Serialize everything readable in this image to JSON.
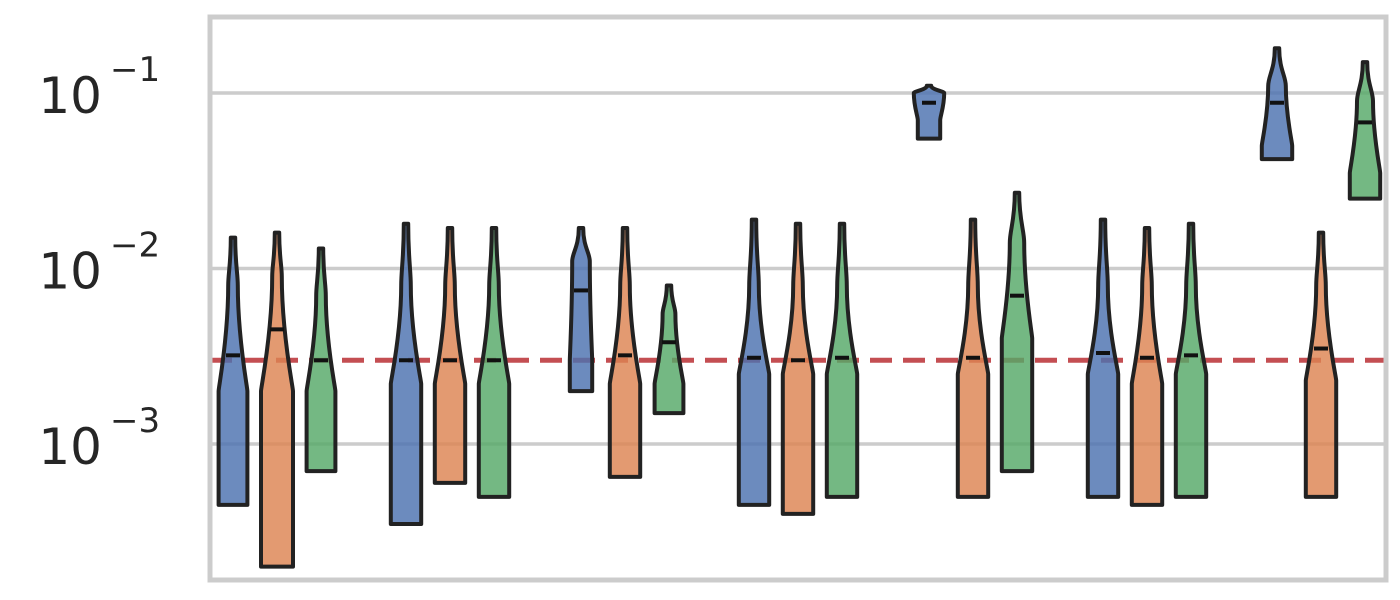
{
  "chart_data": {
    "type": "violin",
    "title": "",
    "xlabel": "",
    "ylabel": "",
    "y_scale": "log",
    "ylim": [
      0.00015,
      0.25
    ],
    "grid": "horizontal",
    "y_ticks": [
      {
        "value": 0.1,
        "base": "10",
        "exp": "−1"
      },
      {
        "value": 0.01,
        "base": "10",
        "exp": "−2"
      },
      {
        "value": 0.001,
        "base": "10",
        "exp": "−3"
      }
    ],
    "reference_line": {
      "value": 0.003,
      "style": "dashed",
      "color": "#c44e52"
    },
    "series_colors": [
      "#4c72b0",
      "#dd8452",
      "#55a868"
    ],
    "groups": [
      {
        "violins": [
          {
            "series": 0,
            "min": 0.00045,
            "max": 0.015,
            "median": 0.0032,
            "lower_knee": 0.002,
            "upper_knee": 0.008,
            "upper_width": 0.3,
            "lower_width": 0.9
          },
          {
            "series": 1,
            "min": 0.0002,
            "max": 0.016,
            "median": 0.0045,
            "lower_knee": 0.002,
            "upper_knee": 0.009,
            "upper_width": 0.3,
            "lower_width": 1.0
          },
          {
            "series": 2,
            "min": 0.0007,
            "max": 0.013,
            "median": 0.003,
            "lower_knee": 0.002,
            "upper_knee": 0.007,
            "upper_width": 0.3,
            "lower_width": 0.9
          }
        ]
      },
      {
        "violins": [
          {
            "series": 0,
            "min": 0.00035,
            "max": 0.018,
            "median": 0.003,
            "lower_knee": 0.0022,
            "upper_knee": 0.008,
            "upper_width": 0.3,
            "lower_width": 0.95
          },
          {
            "series": 1,
            "min": 0.0006,
            "max": 0.017,
            "median": 0.003,
            "lower_knee": 0.0022,
            "upper_knee": 0.008,
            "upper_width": 0.3,
            "lower_width": 0.95
          },
          {
            "series": 2,
            "min": 0.0005,
            "max": 0.017,
            "median": 0.003,
            "lower_knee": 0.0022,
            "upper_knee": 0.008,
            "upper_width": 0.3,
            "lower_width": 0.95
          }
        ]
      },
      {
        "violins": [
          {
            "series": 0,
            "min": 0.002,
            "max": 0.017,
            "median": 0.0075,
            "lower_knee": 0.003,
            "upper_knee": 0.011,
            "upper_width": 0.55,
            "lower_width": 0.7
          },
          {
            "series": 1,
            "min": 0.00065,
            "max": 0.017,
            "median": 0.0032,
            "lower_knee": 0.0022,
            "upper_knee": 0.008,
            "upper_width": 0.3,
            "lower_width": 0.95
          },
          {
            "series": 2,
            "min": 0.0015,
            "max": 0.008,
            "median": 0.0038,
            "lower_knee": 0.0022,
            "upper_knee": 0.0055,
            "upper_width": 0.4,
            "lower_width": 0.9
          }
        ]
      },
      {
        "violins": [
          {
            "series": 0,
            "min": 0.00045,
            "max": 0.019,
            "median": 0.0031,
            "lower_knee": 0.0025,
            "upper_knee": 0.008,
            "upper_width": 0.3,
            "lower_width": 0.95
          },
          {
            "series": 1,
            "min": 0.0004,
            "max": 0.018,
            "median": 0.003,
            "lower_knee": 0.0025,
            "upper_knee": 0.008,
            "upper_width": 0.3,
            "lower_width": 0.95
          },
          {
            "series": 2,
            "min": 0.0005,
            "max": 0.018,
            "median": 0.0031,
            "lower_knee": 0.0025,
            "upper_knee": 0.008,
            "upper_width": 0.3,
            "lower_width": 0.95
          }
        ]
      },
      {
        "violins": [
          {
            "series": 0,
            "min": 0.055,
            "max": 0.11,
            "median": 0.088,
            "lower_knee": 0.07,
            "upper_knee": 0.1,
            "upper_width": 0.95,
            "lower_width": 0.7
          },
          {
            "series": 1,
            "min": 0.0005,
            "max": 0.019,
            "median": 0.0031,
            "lower_knee": 0.0025,
            "upper_knee": 0.008,
            "upper_width": 0.3,
            "lower_width": 0.95
          },
          {
            "series": 2,
            "min": 0.0007,
            "max": 0.027,
            "median": 0.007,
            "lower_knee": 0.004,
            "upper_knee": 0.014,
            "upper_width": 0.45,
            "lower_width": 0.95
          }
        ]
      },
      {
        "violins": [
          {
            "series": 0,
            "min": 0.0005,
            "max": 0.019,
            "median": 0.0033,
            "lower_knee": 0.0025,
            "upper_knee": 0.008,
            "upper_width": 0.3,
            "lower_width": 0.95
          },
          {
            "series": 1,
            "min": 0.00045,
            "max": 0.017,
            "median": 0.0031,
            "lower_knee": 0.0022,
            "upper_knee": 0.008,
            "upper_width": 0.3,
            "lower_width": 0.95
          },
          {
            "series": 2,
            "min": 0.0005,
            "max": 0.018,
            "median": 0.0032,
            "lower_knee": 0.0025,
            "upper_knee": 0.008,
            "upper_width": 0.3,
            "lower_width": 0.95
          }
        ]
      },
      {
        "violins": [
          {
            "series": 0,
            "min": 0.042,
            "max": 0.18,
            "median": 0.088,
            "lower_knee": 0.05,
            "upper_knee": 0.11,
            "upper_width": 0.55,
            "lower_width": 0.95
          },
          {
            "series": 1,
            "min": 0.0005,
            "max": 0.016,
            "median": 0.0035,
            "lower_knee": 0.0023,
            "upper_knee": 0.008,
            "upper_width": 0.3,
            "lower_width": 0.95
          },
          {
            "series": 2,
            "min": 0.025,
            "max": 0.15,
            "median": 0.068,
            "lower_knee": 0.035,
            "upper_knee": 0.09,
            "upper_width": 0.5,
            "lower_width": 0.95
          }
        ]
      }
    ]
  }
}
